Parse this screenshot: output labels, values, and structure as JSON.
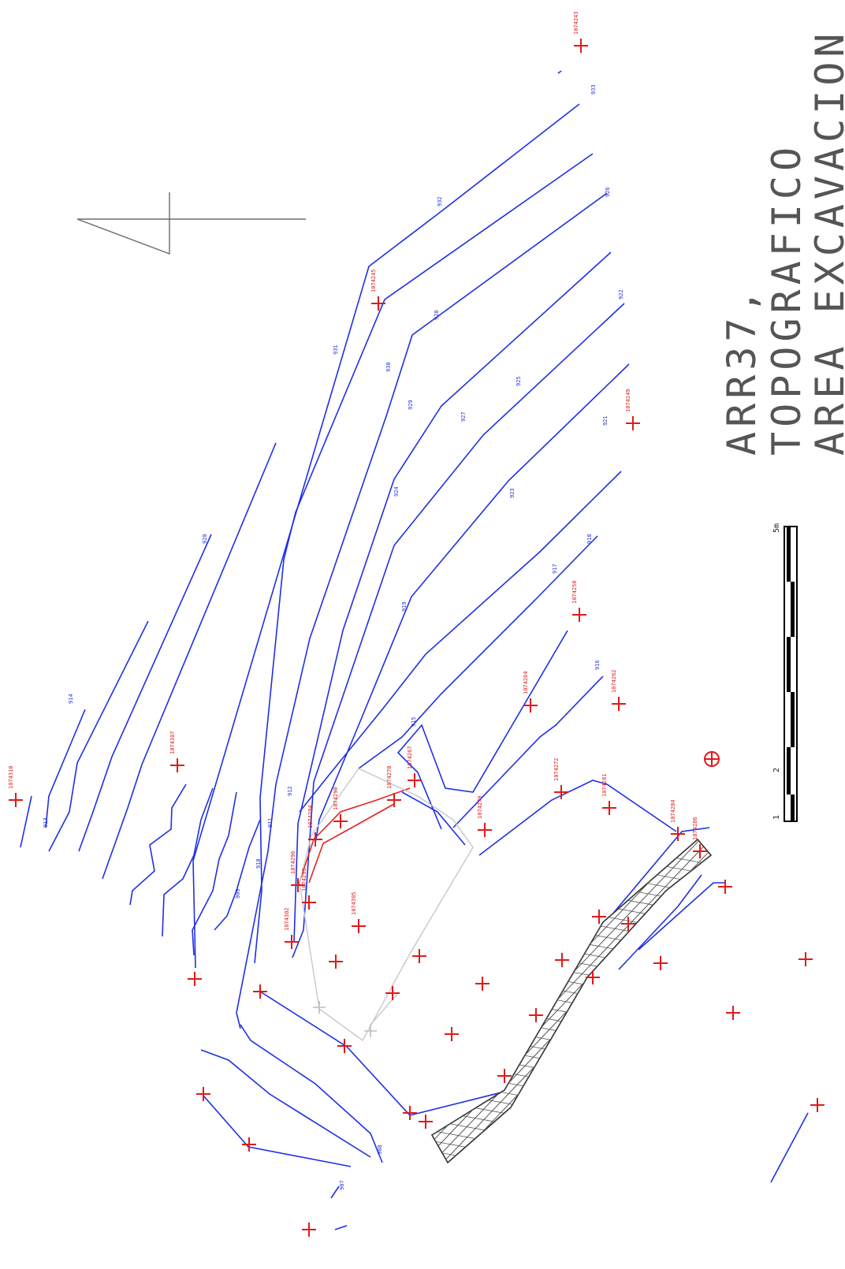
{
  "title": {
    "line1": "ARR37,",
    "line2": "TOPOGRAFICO",
    "line3": "AREA EXCAVACION"
  },
  "scale_bar": {
    "labels": [
      "1",
      "2",
      "5m"
    ]
  },
  "colors": {
    "contour": "#1f2fe6",
    "survey_point": "#e11919",
    "breakline": "#e12323",
    "old_reference": "#c8c8c8",
    "north_arrow": "#6b6b6b"
  },
  "contour_labels": [
    "933",
    "932",
    "931",
    "930",
    "929",
    "928",
    "927",
    "926",
    "925",
    "924",
    "923",
    "922",
    "921",
    "920",
    "919",
    "918",
    "917",
    "916",
    "915",
    "914",
    "913",
    "912",
    "911",
    "910",
    "909",
    "908",
    "907"
  ],
  "survey_points": [
    "1074243",
    "1074245",
    "1074249",
    "1074250",
    "1074262",
    "1074264",
    "1074267",
    "1074270",
    "1074272",
    "1074279",
    "1074281",
    "1074284",
    "1074286",
    "1074290",
    "1074294",
    "1074296",
    "1074299",
    "1074302",
    "1074305",
    "1074307",
    "1074310"
  ]
}
